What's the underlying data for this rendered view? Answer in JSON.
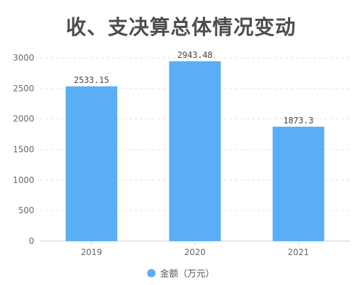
{
  "title": "收、支决算总体情况变动",
  "colors": {
    "bar": "#5aaef5",
    "grid": "#e3e3e3",
    "axis": "#cccccc",
    "tick_text": "#666666",
    "label_text": "#444444"
  },
  "chart_data": {
    "type": "bar",
    "title": "收、支决算总体情况变动",
    "categories": [
      "2019",
      "2020",
      "2021"
    ],
    "series": [
      {
        "name": "金额（万元）",
        "values": [
          2533.15,
          2943.48,
          1873.3
        ],
        "labels": [
          "2533.15",
          "2943.48",
          "1873.3"
        ]
      }
    ],
    "xlabel": "",
    "ylabel": "",
    "ylim": [
      0,
      3000
    ],
    "yticks": [
      0,
      500,
      1000,
      1500,
      2000,
      2500,
      3000
    ],
    "grid": true,
    "legend_position": "bottom-center"
  }
}
